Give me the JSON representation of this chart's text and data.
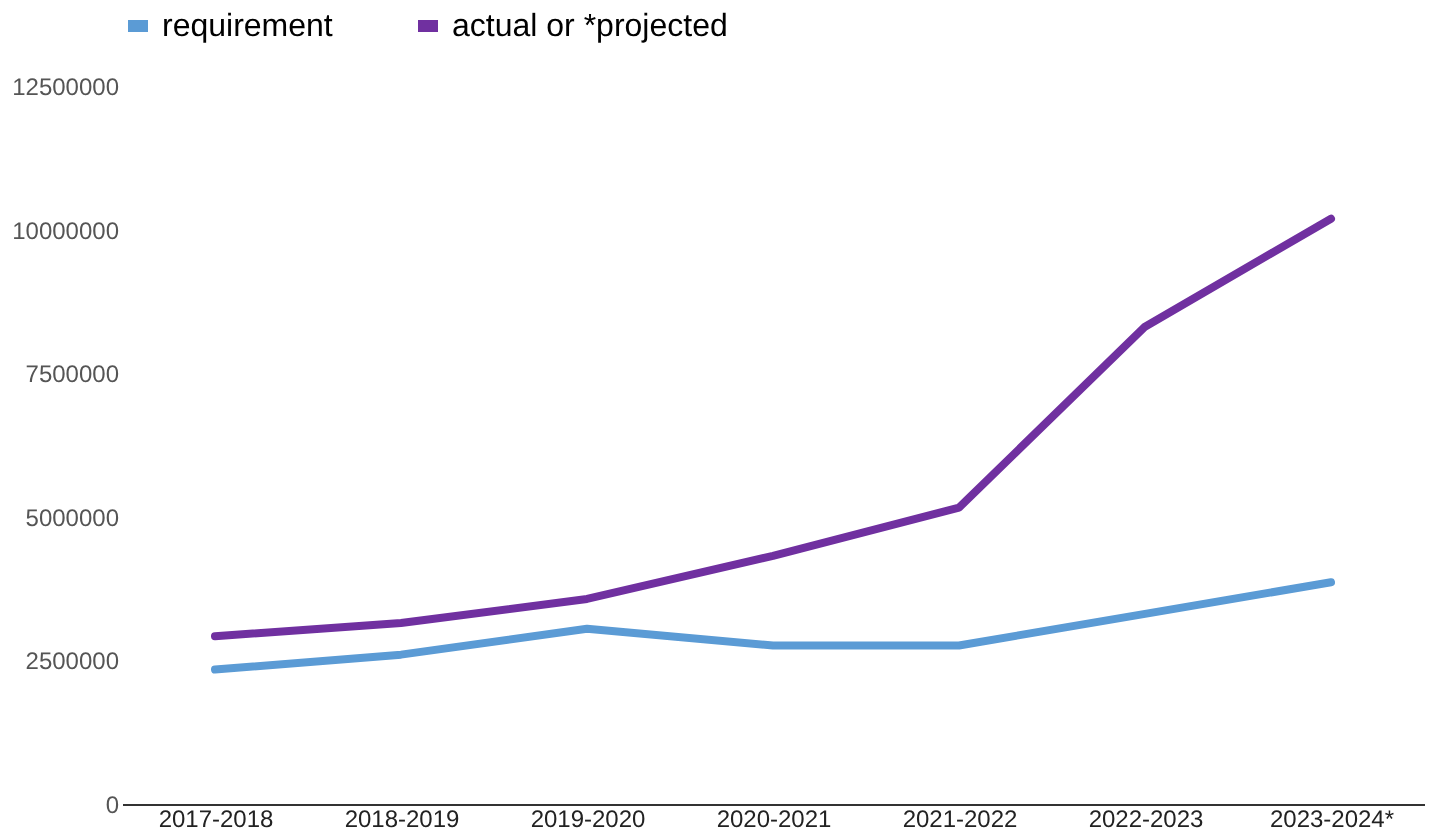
{
  "chart_data": {
    "type": "line",
    "categories": [
      "2017-2018",
      "2018-2019",
      "2019-2020",
      "2020-2021",
      "2021-2022",
      "2022-2023",
      "2023-2024*"
    ],
    "series": [
      {
        "name": "requirement",
        "color": "#5b9bd5",
        "values": [
          2340000,
          2600000,
          3050000,
          2760000,
          2760000,
          3310000,
          3860000
        ]
      },
      {
        "name": "actual or *projected",
        "color": "#7030a0",
        "values": [
          2920000,
          3150000,
          3570000,
          4320000,
          5160000,
          8310000,
          10190000
        ]
      }
    ],
    "ylim": [
      0,
      12500000
    ],
    "yticks": [
      0,
      2500000,
      5000000,
      7500000,
      10000000,
      12500000
    ],
    "grid": false,
    "legend": "top",
    "marker": "none",
    "line_style": "solid"
  }
}
